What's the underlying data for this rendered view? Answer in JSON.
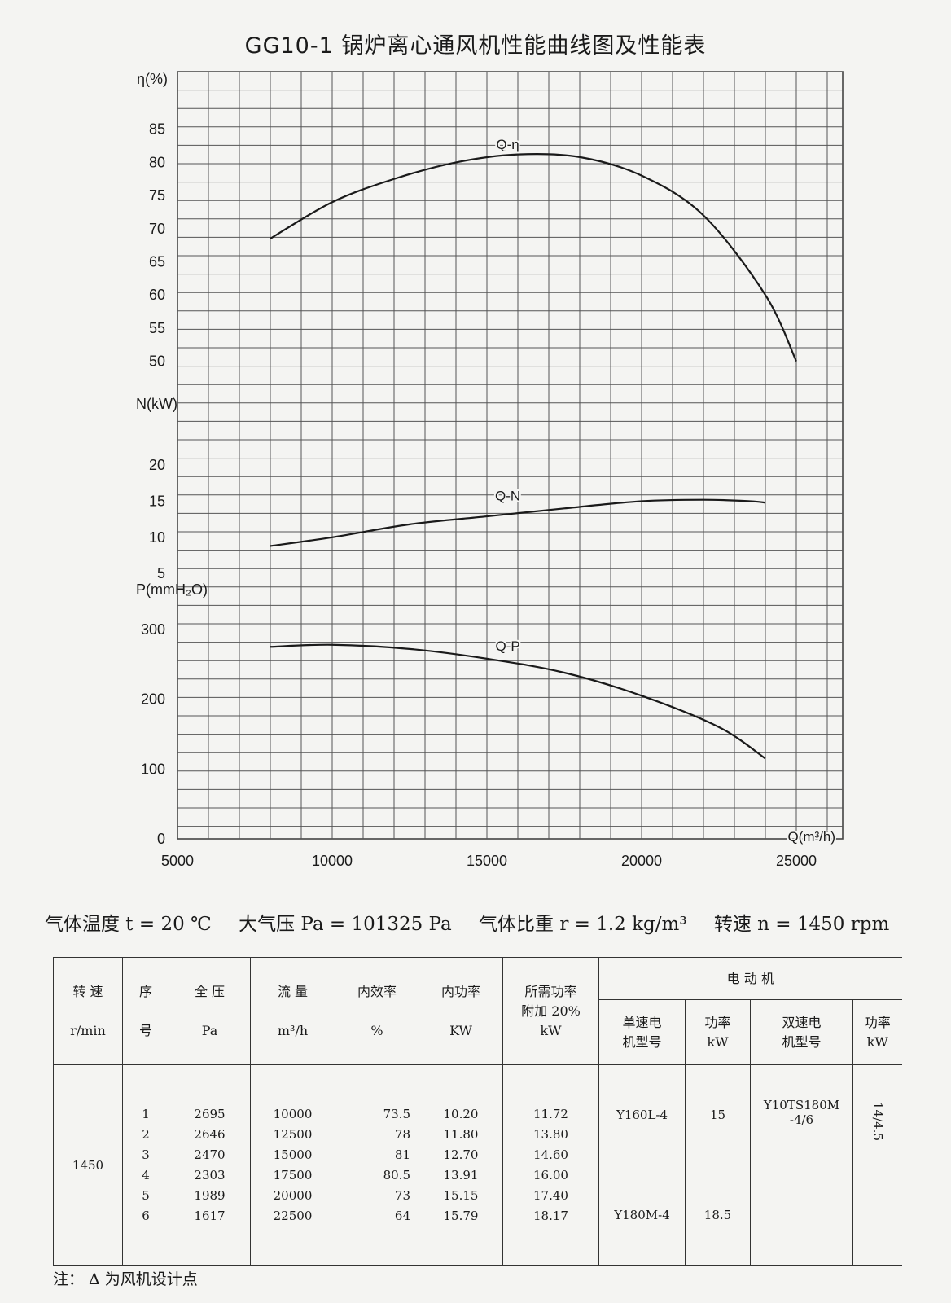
{
  "title": "GG10-1 锅炉离心通风机性能曲线图及性能表",
  "chart_data": {
    "type": "line",
    "title": "GG10-1 锅炉离心通风机性能曲线图及性能表",
    "xlabel": "Q(m³/h)",
    "xlim": [
      5000,
      26500
    ],
    "xticks": [
      5000,
      10000,
      15000,
      20000,
      25000
    ],
    "grid": true,
    "panels": [
      {
        "ylabel": "η(%)",
        "ylim": [
          47,
          90
        ],
        "yticks": [
          50,
          55,
          60,
          65,
          70,
          75,
          80,
          85
        ],
        "series": [
          {
            "name": "Q-η",
            "x": [
              8000,
              10000,
              12000,
              14000,
              16000,
              18000,
              20000,
              22000,
              24000,
              25000
            ],
            "y": [
              68.5,
              74.0,
              77.5,
              80.0,
              81.2,
              80.8,
              78.0,
              72.0,
              60.0,
              50.0
            ]
          }
        ]
      },
      {
        "ylabel": "N(kW)",
        "ylim": [
          3,
          28
        ],
        "yticks": [
          5,
          10,
          15,
          20
        ],
        "series": [
          {
            "name": "Q-N",
            "x": [
              8000,
              10000,
              12500,
              15000,
              17500,
              20000,
              22000,
              23500,
              24000
            ],
            "y": [
              8.8,
              10.0,
              11.8,
              12.9,
              14.0,
              15.0,
              15.2,
              15.0,
              14.8
            ]
          }
        ]
      },
      {
        "ylabel": "P(mmH₂O)",
        "ylim": [
          0,
          350
        ],
        "yticks": [
          0,
          100,
          200,
          300
        ],
        "series": [
          {
            "name": "Q-P",
            "x": [
              8000,
              10000,
              12500,
              15000,
              17500,
              20000,
              22500,
              24000
            ],
            "y": [
              275,
              278,
              272,
              258,
              238,
              205,
              160,
              115
            ]
          }
        ]
      }
    ]
  },
  "conditions": [
    "气体温度 t = 20 ℃",
    "大气压 Pa = 101325 Pa",
    "气体比重 r = 1.2 kg/m³",
    "转速 n = 1450 rpm"
  ],
  "table": {
    "headers": {
      "speed": [
        "转 速",
        "r/min"
      ],
      "no": [
        "序",
        "号"
      ],
      "pressure": [
        "全 压",
        "Pa"
      ],
      "flow": [
        "流 量",
        "m³/h"
      ],
      "eff": [
        "内效率",
        "%"
      ],
      "power": [
        "内功率",
        "KW"
      ],
      "req": [
        "所需功率",
        "附加 20%",
        "kW"
      ],
      "motor": "电 动 机",
      "single_type": [
        "单速电",
        "机型号"
      ],
      "single_power": [
        "功率",
        "kW"
      ],
      "dual_type": [
        "双速电",
        "机型号"
      ],
      "dual_power": [
        "功率",
        "kW"
      ]
    },
    "speed": "1450",
    "rows": [
      {
        "no": "1",
        "p": "2695",
        "q": "10000",
        "eta": "73.5",
        "n": "10.20",
        "req": "11.72"
      },
      {
        "no": "2",
        "p": "2646",
        "q": "12500",
        "eta": "78",
        "n": "11.80",
        "req": "13.80"
      },
      {
        "no": "3",
        "p": "2470",
        "q": "15000",
        "eta": "81",
        "n": "12.70",
        "req": "14.60"
      },
      {
        "no": "4",
        "p": "2303",
        "q": "17500",
        "eta": "80.5",
        "n": "13.91",
        "req": "16.00"
      },
      {
        "no": "5",
        "p": "1989",
        "q": "20000",
        "eta": "73",
        "n": "15.15",
        "req": "17.40"
      },
      {
        "no": "6",
        "p": "1617",
        "q": "22500",
        "eta": "64",
        "n": "15.79",
        "req": "18.17"
      }
    ],
    "motor1": {
      "type": "Y160L-4",
      "power": "15"
    },
    "motor2": {
      "type": "Y180M-4",
      "power": "18.5"
    },
    "dual": {
      "type_line1": "Y10TS180M",
      "type_line2": "-4/6",
      "power": "14/4.5"
    }
  },
  "note": "注： Δ 为风机设计点"
}
